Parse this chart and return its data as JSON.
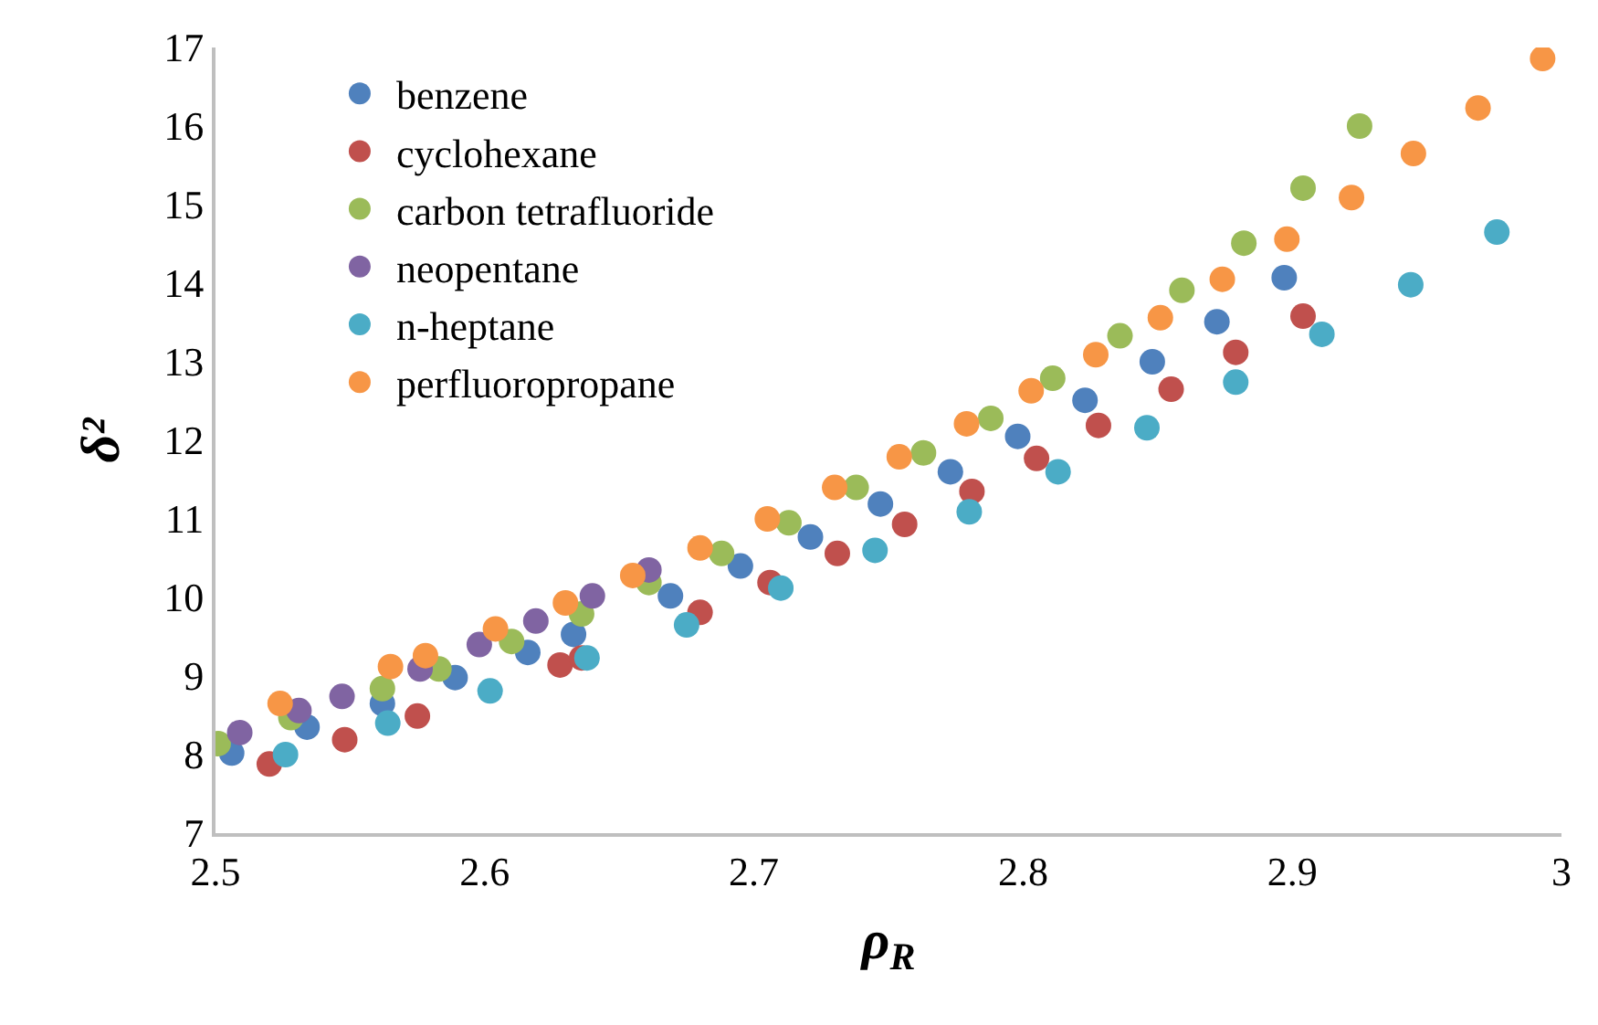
{
  "chart_data": {
    "type": "scatter",
    "xlabel": "ρ$_{R}$",
    "ylabel": "δ²",
    "xlim": [
      2.5,
      3
    ],
    "xticks": [
      2.5,
      2.6,
      2.7,
      2.8,
      2.9,
      3
    ],
    "ylim": [
      7,
      17
    ],
    "yticks": [
      7,
      8,
      9,
      10,
      11,
      12,
      13,
      14,
      15,
      16,
      17
    ],
    "legend": "top left",
    "marker": "circle",
    "series": [
      {
        "name": "benzene",
        "color": "#4f81bd",
        "x": [
          2.506,
          2.534,
          2.562,
          2.589,
          2.616,
          2.633,
          2.669,
          2.695,
          2.721,
          2.747,
          2.773,
          2.798,
          2.823,
          2.848,
          2.872,
          2.897
        ],
        "values": [
          8.02,
          8.35,
          8.65,
          8.98,
          9.3,
          9.53,
          10.02,
          10.4,
          10.77,
          11.19,
          11.6,
          12.05,
          12.51,
          13.0,
          13.51,
          14.07
        ]
      },
      {
        "name": "cyclohexane",
        "color": "#c0504d",
        "x": [
          2.52,
          2.548,
          2.575,
          2.628,
          2.636,
          2.68,
          2.706,
          2.731,
          2.756,
          2.781,
          2.805,
          2.828,
          2.855,
          2.879,
          2.904
        ],
        "values": [
          7.88,
          8.19,
          8.49,
          9.14,
          9.23,
          9.81,
          10.19,
          10.56,
          10.93,
          11.35,
          11.77,
          12.19,
          12.65,
          13.12,
          13.58
        ]
      },
      {
        "name": "carbon tetrafluoride",
        "color": "#9bbb59",
        "x": [
          2.501,
          2.528,
          2.562,
          2.583,
          2.61,
          2.636,
          2.661,
          2.688,
          2.713,
          2.738,
          2.763,
          2.788,
          2.811,
          2.836,
          2.859,
          2.882,
          2.904,
          2.925
        ],
        "values": [
          8.14,
          8.47,
          8.84,
          9.09,
          9.44,
          9.79,
          10.19,
          10.56,
          10.95,
          11.4,
          11.84,
          12.28,
          12.79,
          13.33,
          13.91,
          14.51,
          15.21,
          16.0
        ]
      },
      {
        "name": "neopentane",
        "color": "#8064a2",
        "x": [
          2.509,
          2.531,
          2.547,
          2.576,
          2.598,
          2.619,
          2.64,
          2.661
        ],
        "values": [
          8.28,
          8.56,
          8.74,
          9.09,
          9.4,
          9.7,
          10.02,
          10.35
        ]
      },
      {
        "name": "n-heptane",
        "color": "#4bacc6",
        "x": [
          2.526,
          2.564,
          2.602,
          2.638,
          2.675,
          2.71,
          2.745,
          2.78,
          2.813,
          2.846,
          2.879,
          2.911,
          2.944,
          2.976
        ],
        "values": [
          8.0,
          8.4,
          8.81,
          9.23,
          9.65,
          10.12,
          10.6,
          11.09,
          11.6,
          12.16,
          12.74,
          13.35,
          13.98,
          14.65
        ]
      },
      {
        "name": "perfluoropropane",
        "color": "#f79646",
        "x": [
          2.524,
          2.565,
          2.578,
          2.604,
          2.63,
          2.655,
          2.68,
          2.705,
          2.73,
          2.754,
          2.779,
          2.803,
          2.827,
          2.851,
          2.874,
          2.898,
          2.922,
          2.945,
          2.969,
          2.993
        ],
        "values": [
          8.65,
          9.12,
          9.26,
          9.6,
          9.93,
          10.28,
          10.63,
          11.0,
          11.4,
          11.79,
          12.21,
          12.63,
          13.09,
          13.56,
          14.05,
          14.56,
          15.09,
          15.65,
          16.23,
          16.86
        ]
      }
    ]
  }
}
